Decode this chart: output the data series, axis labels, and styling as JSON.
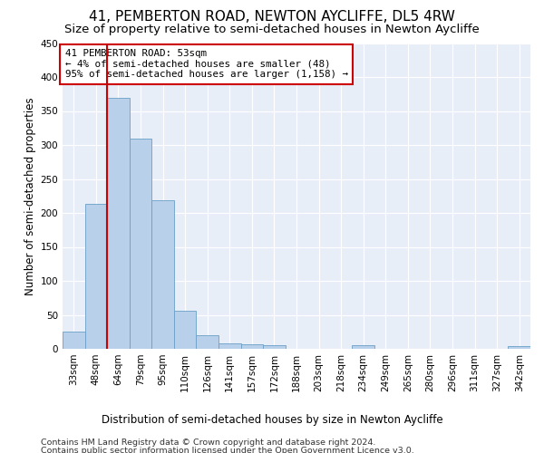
{
  "title": "41, PEMBERTON ROAD, NEWTON AYCLIFFE, DL5 4RW",
  "subtitle": "Size of property relative to semi-detached houses in Newton Aycliffe",
  "xlabel": "Distribution of semi-detached houses by size in Newton Aycliffe",
  "ylabel": "Number of semi-detached properties",
  "footer_line1": "Contains HM Land Registry data © Crown copyright and database right 2024.",
  "footer_line2": "Contains public sector information licensed under the Open Government Licence v3.0.",
  "annotation_line1": "41 PEMBERTON ROAD: 53sqm",
  "annotation_line2": "← 4% of semi-detached houses are smaller (48)",
  "annotation_line3": "95% of semi-detached houses are larger (1,158) →",
  "bar_labels": [
    "33sqm",
    "48sqm",
    "64sqm",
    "79sqm",
    "95sqm",
    "110sqm",
    "126sqm",
    "141sqm",
    "157sqm",
    "172sqm",
    "188sqm",
    "203sqm",
    "218sqm",
    "234sqm",
    "249sqm",
    "265sqm",
    "280sqm",
    "296sqm",
    "311sqm",
    "327sqm",
    "342sqm"
  ],
  "bar_values": [
    25,
    213,
    370,
    310,
    219,
    56,
    20,
    8,
    7,
    5,
    0,
    0,
    0,
    5,
    0,
    0,
    0,
    0,
    0,
    0,
    4
  ],
  "bar_color": "#b8d0ea",
  "bar_edge_color": "#6a9fc8",
  "red_line_x": 1.5,
  "ylim": [
    0,
    450
  ],
  "yticks": [
    0,
    50,
    100,
    150,
    200,
    250,
    300,
    350,
    400,
    450
  ],
  "bg_color": "#e8eef8",
  "grid_color": "#ffffff",
  "annotation_box_color": "#ffffff",
  "annotation_box_edge": "#cc0000",
  "red_line_color": "#cc0000",
  "title_fontsize": 11,
  "subtitle_fontsize": 9.5,
  "axis_label_fontsize": 8.5,
  "tick_fontsize": 7.5,
  "annotation_fontsize": 7.8,
  "footer_fontsize": 6.8
}
